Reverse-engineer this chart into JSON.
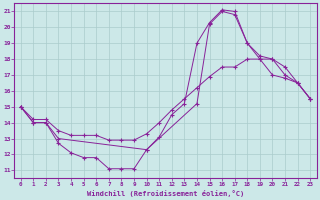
{
  "xlabel": "Windchill (Refroidissement éolien,°C)",
  "bg_color": "#cce8e8",
  "grid_color": "#aacccc",
  "line_color": "#882299",
  "xlim": [
    -0.5,
    23.5
  ],
  "ylim": [
    10.5,
    21.5
  ],
  "yticks": [
    11,
    12,
    13,
    14,
    15,
    16,
    17,
    18,
    19,
    20,
    21
  ],
  "xticks": [
    0,
    1,
    2,
    3,
    4,
    5,
    6,
    7,
    8,
    9,
    10,
    11,
    12,
    13,
    14,
    15,
    16,
    17,
    18,
    19,
    20,
    21,
    22,
    23
  ],
  "line1_x": [
    0,
    1,
    2,
    3,
    4,
    5,
    6,
    7,
    8,
    9,
    10,
    11,
    12,
    13,
    14,
    15,
    16,
    17,
    18,
    19,
    20,
    21,
    22,
    23
  ],
  "line1_y": [
    15.0,
    14.0,
    14.0,
    12.7,
    12.1,
    11.8,
    11.8,
    11.1,
    11.1,
    11.1,
    12.3,
    13.1,
    14.5,
    15.2,
    19.0,
    20.3,
    21.1,
    21.0,
    19.0,
    18.0,
    17.0,
    16.8,
    16.5,
    15.5
  ],
  "line2_x": [
    0,
    1,
    2,
    3,
    4,
    5,
    6,
    7,
    8,
    9,
    10,
    11,
    12,
    13,
    14,
    15,
    16,
    17,
    18,
    19,
    20,
    21,
    22,
    23
  ],
  "line2_y": [
    15.0,
    14.2,
    14.2,
    13.5,
    13.2,
    13.2,
    13.2,
    12.9,
    12.9,
    12.9,
    13.3,
    14.0,
    14.8,
    15.5,
    16.2,
    16.9,
    17.5,
    17.5,
    18.0,
    18.0,
    18.0,
    17.5,
    16.5,
    15.5
  ],
  "line3_x": [
    0,
    1,
    2,
    3,
    10,
    14,
    15,
    16,
    17,
    18,
    19,
    20,
    21,
    22,
    23
  ],
  "line3_y": [
    15.0,
    14.0,
    14.0,
    13.0,
    12.3,
    15.2,
    20.2,
    21.0,
    20.8,
    19.0,
    18.2,
    18.0,
    17.0,
    16.5,
    15.5
  ]
}
